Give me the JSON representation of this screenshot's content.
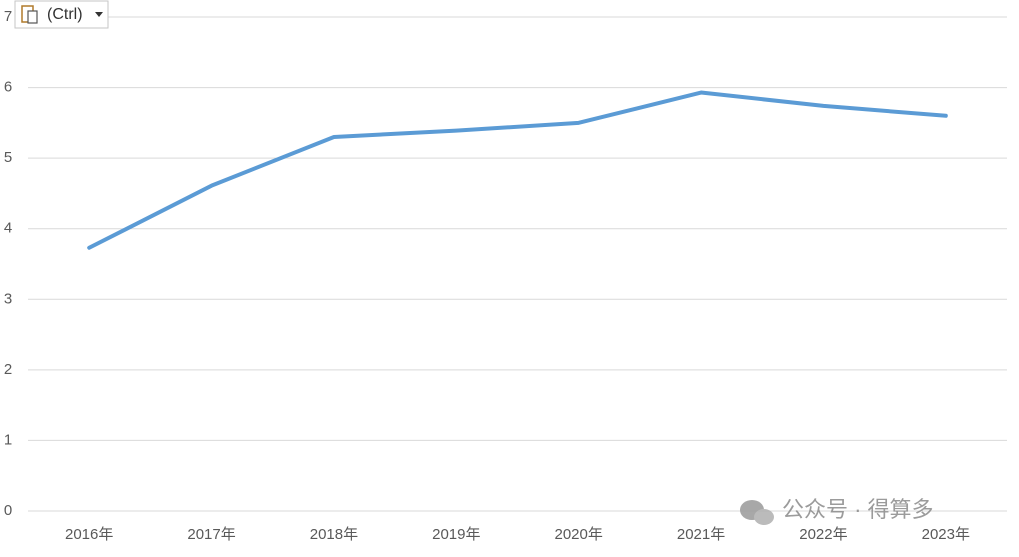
{
  "chart_data": {
    "type": "line",
    "categories": [
      "2016年",
      "2017年",
      "2018年",
      "2019年",
      "2020年",
      "2021年",
      "2022年",
      "2023年"
    ],
    "series": [
      {
        "color": "#5b9bd5",
        "values": [
          3.73,
          4.61,
          5.3,
          5.39,
          5.5,
          5.93,
          5.74,
          5.6
        ]
      }
    ],
    "ylim": [
      0,
      7
    ],
    "yticks": [
      0,
      1,
      2,
      3,
      4,
      5,
      6,
      7
    ],
    "grid": true
  },
  "paste_button": "(Ctrl)",
  "watermark": "公众号 · 得算多"
}
